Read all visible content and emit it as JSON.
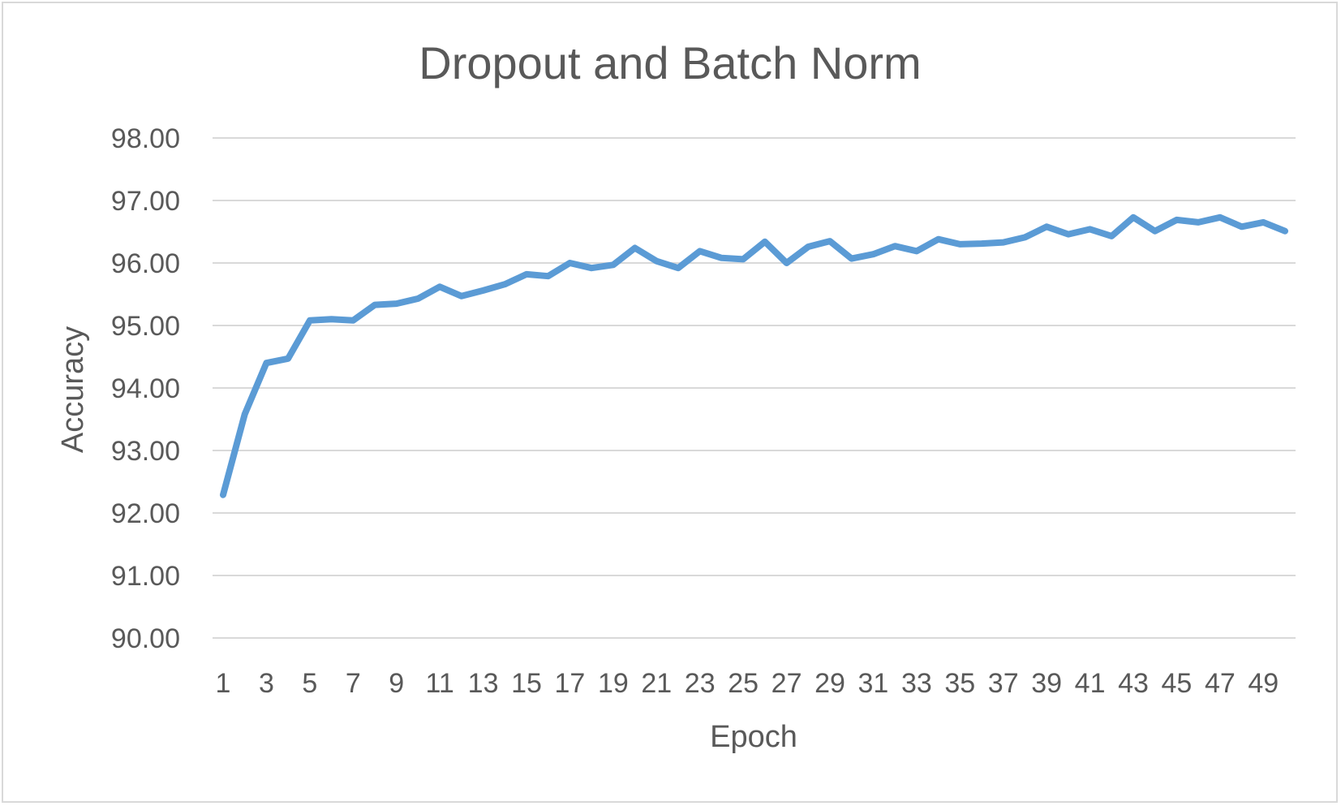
{
  "chart_data": {
    "type": "line",
    "title": "Dropout and Batch Norm",
    "xlabel": "Epoch",
    "ylabel": "Accuracy",
    "ylim": [
      90,
      98
    ],
    "yticks": [
      "90.00",
      "91.00",
      "92.00",
      "93.00",
      "94.00",
      "95.00",
      "96.00",
      "97.00",
      "98.00"
    ],
    "x": [
      1,
      2,
      3,
      4,
      5,
      6,
      7,
      8,
      9,
      10,
      11,
      12,
      13,
      14,
      15,
      16,
      17,
      18,
      19,
      20,
      21,
      22,
      23,
      24,
      25,
      26,
      27,
      28,
      29,
      30,
      31,
      32,
      33,
      34,
      35,
      36,
      37,
      38,
      39,
      40,
      41,
      42,
      43,
      44,
      45,
      46,
      47,
      48,
      49,
      50
    ],
    "xtick_labels": [
      "1",
      "3",
      "5",
      "7",
      "9",
      "11",
      "13",
      "15",
      "17",
      "19",
      "21",
      "23",
      "25",
      "27",
      "29",
      "31",
      "33",
      "35",
      "37",
      "39",
      "41",
      "43",
      "45",
      "47",
      "49"
    ],
    "series": [
      {
        "color": "#5b9bd5",
        "values": [
          92.29,
          93.58,
          94.4,
          94.47,
          95.08,
          95.1,
          95.08,
          95.33,
          95.35,
          95.43,
          95.62,
          95.47,
          95.56,
          95.66,
          95.82,
          95.79,
          96.0,
          95.92,
          95.97,
          96.24,
          96.03,
          95.92,
          96.19,
          96.08,
          96.06,
          96.34,
          96.0,
          96.26,
          96.35,
          96.07,
          96.14,
          96.27,
          96.19,
          96.38,
          96.3,
          96.31,
          96.33,
          96.41,
          96.58,
          96.46,
          96.54,
          96.43,
          96.73,
          96.51,
          96.69,
          96.65,
          96.73,
          96.58,
          96.65,
          96.51
        ]
      }
    ],
    "grid": true,
    "legend": "none"
  }
}
